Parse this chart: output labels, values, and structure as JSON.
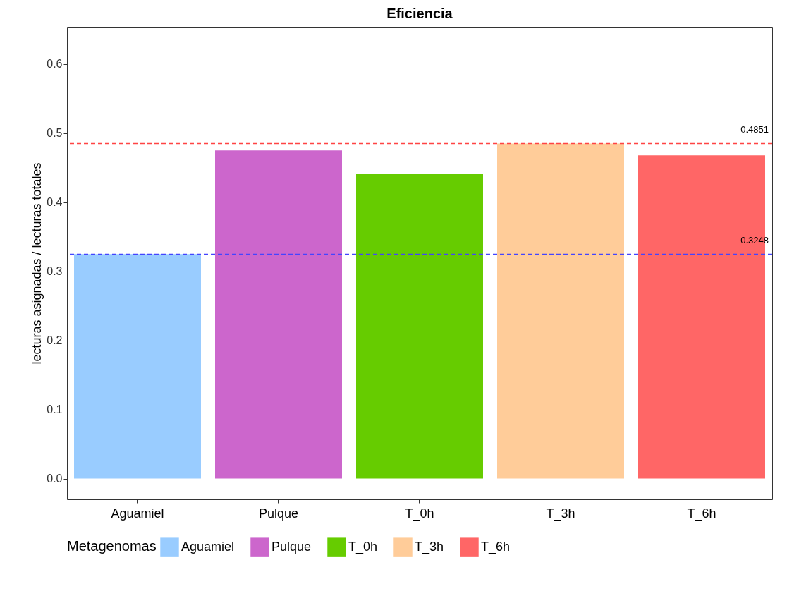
{
  "chart_data": {
    "type": "bar",
    "title": "Eficiencia",
    "ylabel": "lecturas asignadas / lecturas totales",
    "legend_title": "Metagenomas",
    "categories": [
      "Aguamiel",
      "Pulque",
      "T_0h",
      "T_3h",
      "T_6h"
    ],
    "stacked": true,
    "series": [
      {
        "name": "Aguamiel",
        "color": "#99ccff",
        "values": [
          0.325,
          null,
          null,
          null,
          null
        ]
      },
      {
        "name": "Pulque",
        "color": "#cc66cc",
        "values": [
          null,
          0.475,
          null,
          null,
          null
        ]
      },
      {
        "name": "T_0h",
        "color": "#66cc00",
        "values": [
          null,
          null,
          0.441,
          null,
          null
        ]
      },
      {
        "name": "T_3h",
        "color": "#ffcc99",
        "values": [
          null,
          null,
          null,
          0.485,
          null
        ]
      },
      {
        "name": "T_6h",
        "color": "#ff6666",
        "values": [
          null,
          null,
          null,
          null,
          0.468
        ]
      }
    ],
    "ylim": [
      -0.03,
      0.654
    ],
    "yticks": [
      {
        "value": 0,
        "label": "0.0"
      },
      {
        "value": 0.1,
        "label": "0.1"
      },
      {
        "value": 0.2,
        "label": "0.2"
      },
      {
        "value": 0.3,
        "label": "0.3"
      },
      {
        "value": 0.4,
        "label": "0.4"
      },
      {
        "value": 0.5,
        "label": "0.5"
      },
      {
        "value": 0.6,
        "label": "0.6"
      }
    ],
    "ref_lines": [
      {
        "axis": "y",
        "value": 0.4851,
        "label": "0.4851",
        "color": "#ff4444",
        "line_style": "dashed"
      },
      {
        "axis": "y",
        "value": 0.3248,
        "label": "0.3248",
        "color": "#4444ff",
        "line_style": "dashed"
      }
    ],
    "grid": false,
    "legend": "bottom"
  }
}
